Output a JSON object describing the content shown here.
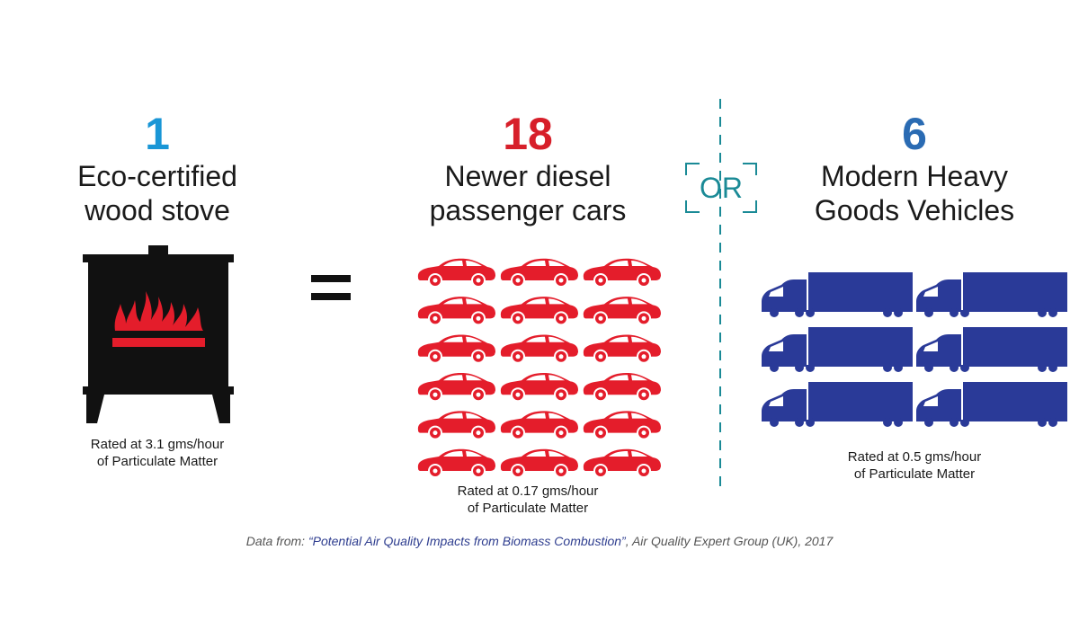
{
  "colors": {
    "stove": "#e41d2b",
    "cars": "#e41d2b",
    "hgv": "#2a3a98",
    "stove_count": "#1996d6",
    "car_count": "#d71f2a",
    "hgv_count": "#2a6bb3",
    "or": "#1a8a96"
  },
  "stove": {
    "count": "1",
    "label_line1": "Eco-certified",
    "label_line2": "wood stove",
    "rating_line1": "Rated at 3.1 gms/hour",
    "rating_line2": "of Particulate Matter",
    "icon": "wood-stove-icon"
  },
  "equals_symbol": "equals-icon",
  "cars": {
    "count": "18",
    "label_line1": "Newer diesel",
    "label_line2": "passenger cars",
    "icon_count": 18,
    "rating_line1": "Rated at 0.17 gms/hour",
    "rating_line2": "of Particulate Matter",
    "icon": "car-icon"
  },
  "or_label": "OR",
  "hgv": {
    "count": "6",
    "label_line1": "Modern Heavy",
    "label_line2": "Goods Vehicles",
    "icon_count": 6,
    "rating_line1": "Rated at 0.5 gms/hour",
    "rating_line2": "of Particulate Matter",
    "icon": "truck-icon"
  },
  "source": {
    "prefix": "Data from: ",
    "title": "“Potential Air Quality Impacts from Biomass Combustion”",
    "suffix": ", Air Quality Expert Group (UK), 2017"
  }
}
